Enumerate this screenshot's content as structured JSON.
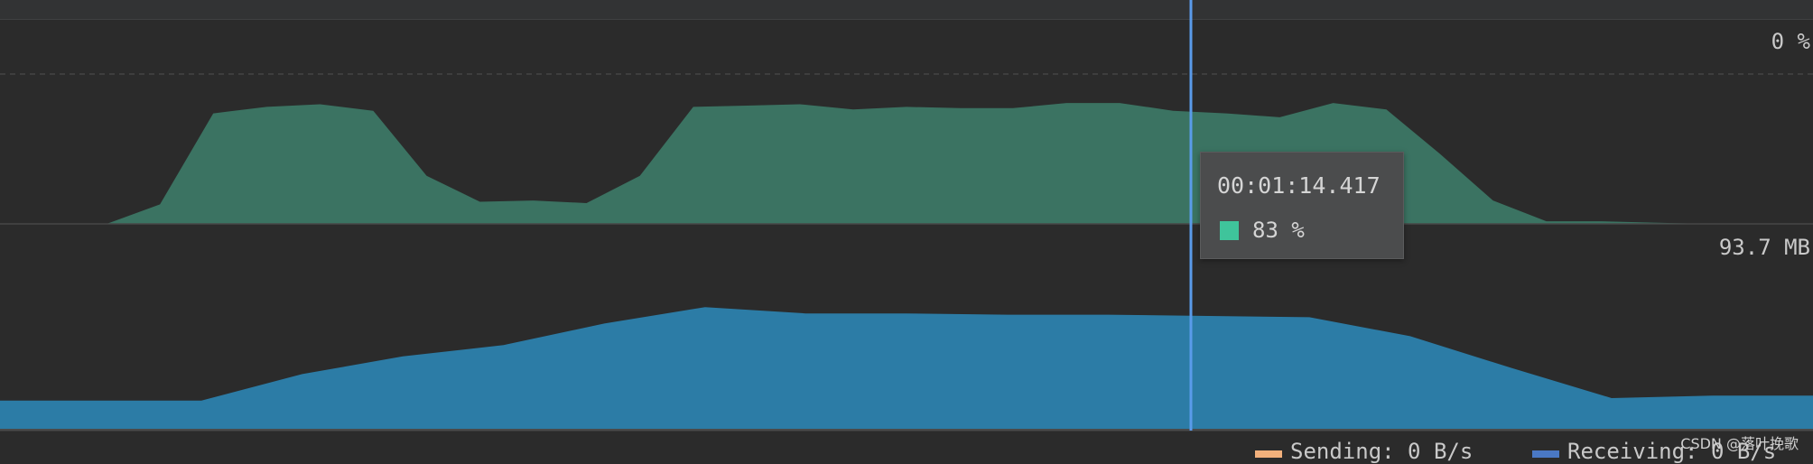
{
  "colors": {
    "background": "#2b2b2b",
    "cpu_fill": "#3b7362",
    "memory_fill": "#2c7ca6",
    "cursor": "#5a9bea",
    "tooltip_swatch": "#3fc49b",
    "sending": "#f2b07c",
    "receiving": "#4a78c4"
  },
  "cpu": {
    "scale_label": "0 %"
  },
  "memory": {
    "scale_label": "93.7 MB"
  },
  "tooltip": {
    "time": "00:01:14.417",
    "value_label": "83 %"
  },
  "legend": {
    "sending": "Sending: 0 B/s",
    "receiving": "Receiving: 0 B/s"
  },
  "watermark": "CSDN @落叶挽歌",
  "chart_data": [
    {
      "type": "area",
      "series": [
        {
          "values": [
            0,
            0,
            0,
            0.15,
            0.85,
            0.9,
            0.92,
            0.87,
            0.37,
            0.17,
            0.18,
            0.16,
            0.37,
            0.9,
            0.91,
            0.92,
            0.88,
            0.9,
            0.89,
            0.89,
            0.93,
            0.93,
            0.87,
            0.85,
            0.82,
            0.93,
            0.88,
            0.54,
            0.18,
            0.02,
            0.02,
            0.01,
            0,
            0,
            0
          ]
        }
      ],
      "ylim": [
        0,
        1
      ]
    },
    {
      "type": "area",
      "series": [
        {
          "values": [
            0.23,
            0.23,
            0.23,
            0.44,
            0.58,
            0.67,
            0.84,
            0.97,
            0.92,
            0.92,
            0.91,
            0.91,
            0.9,
            0.89,
            0.74,
            0.49,
            0.25,
            0.27,
            0.27
          ]
        }
      ],
      "ylim": [
        0,
        1
      ]
    }
  ]
}
